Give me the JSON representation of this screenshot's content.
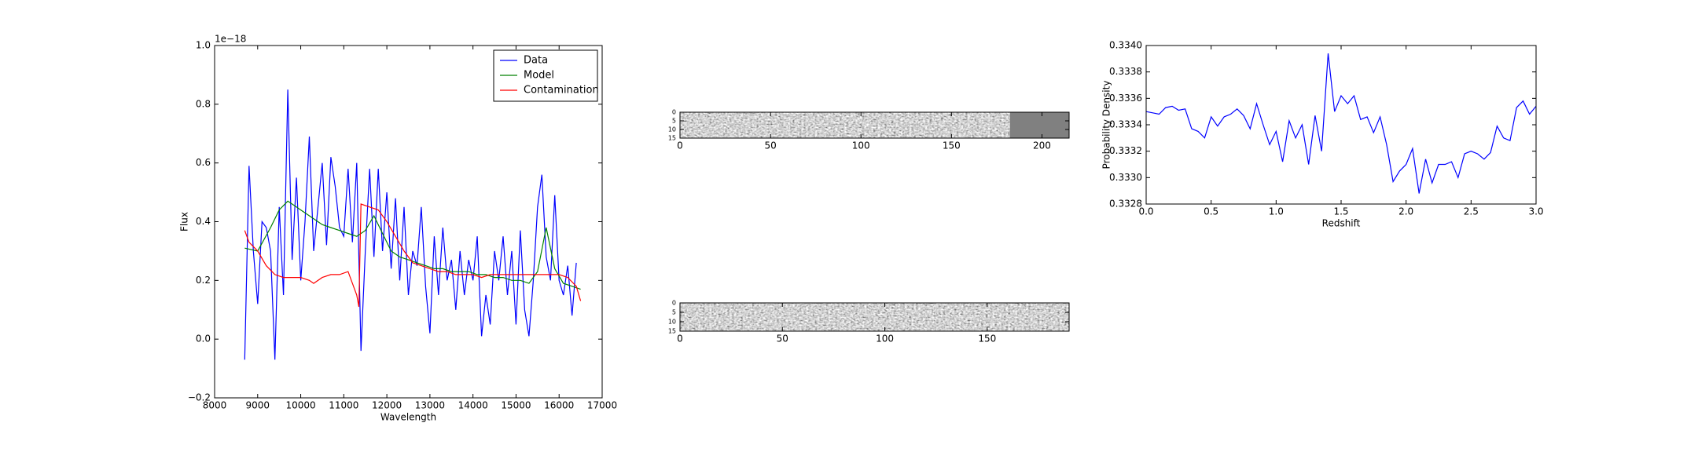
{
  "chart_data": [
    {
      "type": "line",
      "xlabel": "Wavelength",
      "ylabel": "Flux",
      "offset_text": "1e−18",
      "xlim": [
        8000,
        17000
      ],
      "xticks": [
        8000,
        9000,
        10000,
        11000,
        12000,
        13000,
        14000,
        15000,
        16000,
        17000
      ],
      "ylim": [
        -0.2,
        1.0
      ],
      "yticks": [
        {
          "value": -0.2,
          "label": "−0.2"
        },
        {
          "value": 0,
          "label": "0.0"
        },
        0.2,
        0.4,
        0.6,
        0.8,
        {
          "value": 1.0,
          "label": "1.0"
        }
      ],
      "legend": "upper right",
      "series": [
        {
          "name": "Data",
          "color": "#0000ff",
          "x": [
            8700,
            8800,
            8900,
            9000,
            9100,
            9200,
            9300,
            9400,
            9500,
            9600,
            9700,
            9800,
            9900,
            10000,
            10100,
            10200,
            10300,
            10400,
            10500,
            10600,
            10700,
            10800,
            10900,
            11000,
            11100,
            11200,
            11300,
            11400,
            11500,
            11600,
            11700,
            11800,
            11900,
            12000,
            12100,
            12200,
            12300,
            12400,
            12500,
            12600,
            12700,
            12800,
            12900,
            13000,
            13100,
            13200,
            13300,
            13400,
            13500,
            13600,
            13700,
            13800,
            13900,
            14000,
            14100,
            14200,
            14300,
            14400,
            14500,
            14600,
            14700,
            14800,
            14900,
            15000,
            15100,
            15200,
            15300,
            15400,
            15500,
            15600,
            15700,
            15800,
            15900,
            16000,
            16100,
            16200,
            16300,
            16400
          ],
          "values": [
            -0.07,
            0.59,
            0.3,
            0.12,
            0.4,
            0.38,
            0.3,
            -0.07,
            0.45,
            0.15,
            0.85,
            0.27,
            0.55,
            0.2,
            0.4,
            0.69,
            0.3,
            0.45,
            0.6,
            0.32,
            0.62,
            0.52,
            0.38,
            0.35,
            0.58,
            0.33,
            0.6,
            -0.04,
            0.3,
            0.58,
            0.28,
            0.58,
            0.3,
            0.5,
            0.24,
            0.48,
            0.2,
            0.45,
            0.15,
            0.3,
            0.25,
            0.45,
            0.18,
            0.02,
            0.35,
            0.15,
            0.38,
            0.2,
            0.27,
            0.1,
            0.3,
            0.15,
            0.27,
            0.2,
            0.35,
            0.01,
            0.15,
            0.05,
            0.3,
            0.2,
            0.35,
            0.15,
            0.3,
            0.05,
            0.37,
            0.1,
            0.01,
            0.2,
            0.45,
            0.56,
            0.28,
            0.2,
            0.49,
            0.2,
            0.15,
            0.25,
            0.08,
            0.26
          ]
        },
        {
          "name": "Model",
          "color": "#008000",
          "x": [
            8700,
            9000,
            9300,
            9500,
            9700,
            9900,
            10100,
            10300,
            10500,
            10700,
            10900,
            11100,
            11300,
            11500,
            11700,
            11900,
            12100,
            12300,
            12500,
            12700,
            12900,
            13100,
            13300,
            13500,
            13700,
            13900,
            14100,
            14300,
            14500,
            14700,
            14900,
            15100,
            15300,
            15500,
            15700,
            15900,
            16100,
            16300,
            16500
          ],
          "values": [
            0.31,
            0.3,
            0.38,
            0.44,
            0.47,
            0.45,
            0.43,
            0.41,
            0.39,
            0.38,
            0.37,
            0.36,
            0.35,
            0.37,
            0.42,
            0.36,
            0.3,
            0.28,
            0.27,
            0.26,
            0.25,
            0.24,
            0.24,
            0.23,
            0.23,
            0.23,
            0.22,
            0.22,
            0.21,
            0.21,
            0.2,
            0.2,
            0.19,
            0.23,
            0.38,
            0.24,
            0.19,
            0.18,
            0.17
          ]
        },
        {
          "name": "Contamination",
          "color": "#ff0000",
          "x": [
            8700,
            8800,
            9000,
            9200,
            9400,
            9600,
            9800,
            10000,
            10200,
            10300,
            10500,
            10700,
            10900,
            11100,
            11300,
            11350,
            11400,
            11600,
            11800,
            12000,
            12200,
            12400,
            12600,
            12800,
            13000,
            13200,
            13400,
            13600,
            13800,
            14000,
            14200,
            14400,
            14600,
            14800,
            15000,
            15200,
            15400,
            15600,
            15800,
            16000,
            16200,
            16400,
            16500
          ],
          "values": [
            0.37,
            0.33,
            0.3,
            0.25,
            0.22,
            0.21,
            0.21,
            0.21,
            0.2,
            0.19,
            0.21,
            0.22,
            0.22,
            0.23,
            0.15,
            0.11,
            0.46,
            0.45,
            0.44,
            0.4,
            0.35,
            0.3,
            0.26,
            0.25,
            0.24,
            0.23,
            0.23,
            0.22,
            0.22,
            0.22,
            0.21,
            0.22,
            0.22,
            0.22,
            0.22,
            0.22,
            0.22,
            0.22,
            0.22,
            0.22,
            0.21,
            0.18,
            0.13
          ]
        }
      ]
    },
    {
      "type": "image",
      "xlim": [
        0,
        215
      ],
      "xticks": [
        0,
        50,
        100,
        150,
        200
      ],
      "ylim": [
        15,
        0
      ],
      "yticks": [
        0,
        5,
        10,
        15
      ]
    },
    {
      "type": "image",
      "xlim": [
        0,
        190
      ],
      "xticks": [
        0,
        50,
        100,
        150
      ],
      "ylim": [
        15,
        0
      ],
      "yticks": [
        0,
        5,
        10,
        15
      ]
    },
    {
      "type": "line",
      "xlabel": "Redshift",
      "ylabel": "Probability Density",
      "xlim": [
        0,
        3
      ],
      "xticks": [
        {
          "value": 0,
          "label": "0.0"
        },
        0.5,
        {
          "value": 1,
          "label": "1.0"
        },
        1.5,
        {
          "value": 2,
          "label": "2.0"
        },
        2.5,
        {
          "value": 3,
          "label": "3.0"
        }
      ],
      "ylim": [
        0.3328,
        0.334
      ],
      "yticks": [
        0.3328,
        {
          "value": 0.333,
          "label": "0.3330"
        },
        0.3332,
        0.3334,
        0.3336,
        0.3338,
        {
          "value": 0.334,
          "label": "0.3340"
        }
      ],
      "series": [
        {
          "color": "#0000ff",
          "x": [
            0,
            0.05,
            0.1,
            0.15,
            0.2,
            0.25,
            0.3,
            0.35,
            0.4,
            0.45,
            0.5,
            0.55,
            0.6,
            0.65,
            0.7,
            0.75,
            0.8,
            0.85,
            0.9,
            0.95,
            1,
            1.05,
            1.1,
            1.15,
            1.2,
            1.25,
            1.3,
            1.35,
            1.4,
            1.45,
            1.5,
            1.55,
            1.6,
            1.65,
            1.7,
            1.75,
            1.8,
            1.85,
            1.9,
            1.95,
            2,
            2.05,
            2.1,
            2.15,
            2.2,
            2.25,
            2.3,
            2.35,
            2.4,
            2.45,
            2.5,
            2.55,
            2.6,
            2.65,
            2.7,
            2.75,
            2.8,
            2.85,
            2.9,
            2.95,
            3
          ],
          "values": [
            0.3335,
            0.33349,
            0.33348,
            0.33353,
            0.33354,
            0.33351,
            0.33352,
            0.33337,
            0.33335,
            0.3333,
            0.33346,
            0.33339,
            0.33346,
            0.33348,
            0.33352,
            0.33347,
            0.33337,
            0.33356,
            0.3334,
            0.33325,
            0.33335,
            0.33312,
            0.33343,
            0.3333,
            0.3334,
            0.3331,
            0.33347,
            0.3332,
            0.33394,
            0.3335,
            0.33362,
            0.33356,
            0.33362,
            0.33344,
            0.33346,
            0.33334,
            0.33346,
            0.33325,
            0.33297,
            0.33305,
            0.3331,
            0.33322,
            0.33288,
            0.33314,
            0.33296,
            0.3331,
            0.3331,
            0.33312,
            0.333,
            0.33318,
            0.3332,
            0.33318,
            0.33314,
            0.33319,
            0.33339,
            0.3333,
            0.33328,
            0.33353,
            0.33358,
            0.33348,
            0.33354
          ]
        }
      ]
    }
  ]
}
